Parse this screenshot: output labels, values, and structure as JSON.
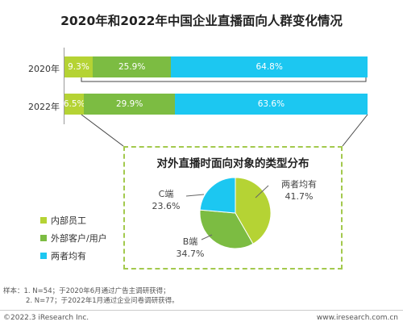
{
  "title": "2020年和2022年中国企业直播面向人群变化情况",
  "colors": {
    "employee": "#b5d334",
    "external": "#7cbc42",
    "both": "#1cc7f1",
    "dashed_border": "#a3c94d"
  },
  "chart_data": [
    {
      "type": "bar",
      "orientation": "horizontal",
      "stacked": true,
      "normalized": true,
      "title": "2020年和2022年中国企业直播面向人群变化情况",
      "categories": [
        "2020年",
        "2022年"
      ],
      "series": [
        {
          "name": "内部员工",
          "values": [
            9.3,
            6.5
          ],
          "labels": [
            "9.3%",
            "6.5%"
          ],
          "color": "#b5d334"
        },
        {
          "name": "外部客户/用户",
          "values": [
            25.9,
            29.9
          ],
          "labels": [
            "25.9%",
            "29.9%"
          ],
          "color": "#7cbc42"
        },
        {
          "name": "两者均有",
          "values": [
            64.8,
            63.6
          ],
          "labels": [
            "64.8%",
            "63.6%"
          ],
          "color": "#1cc7f1"
        }
      ],
      "xlim": [
        0,
        100
      ],
      "legend": "left"
    },
    {
      "type": "pie",
      "title": "对外直播时面向对象的类型分布",
      "slices": [
        {
          "name": "两者均有",
          "value": 41.7,
          "label": "41.7%",
          "color": "#b5d334"
        },
        {
          "name": "B端",
          "value": 34.7,
          "label": "34.7%",
          "color": "#7cbc42"
        },
        {
          "name": "C端",
          "value": 23.6,
          "label": "23.6%",
          "color": "#1cc7f1"
        }
      ]
    }
  ],
  "legend": {
    "items": [
      {
        "label": "内部员工",
        "color": "#b5d334"
      },
      {
        "label": "外部客户/用户",
        "color": "#7cbc42"
      },
      {
        "label": "两者均有",
        "color": "#1cc7f1"
      }
    ]
  },
  "notes": {
    "line1": "样本：1. N=54；于2020年6月通过广告主调研获得；",
    "line2": "2. N=77；于2022年1月通过企业问卷调研获得。"
  },
  "footer": {
    "copyright": "©2022.3 iResearch Inc.",
    "website": "www.iresearch.com.cn"
  }
}
